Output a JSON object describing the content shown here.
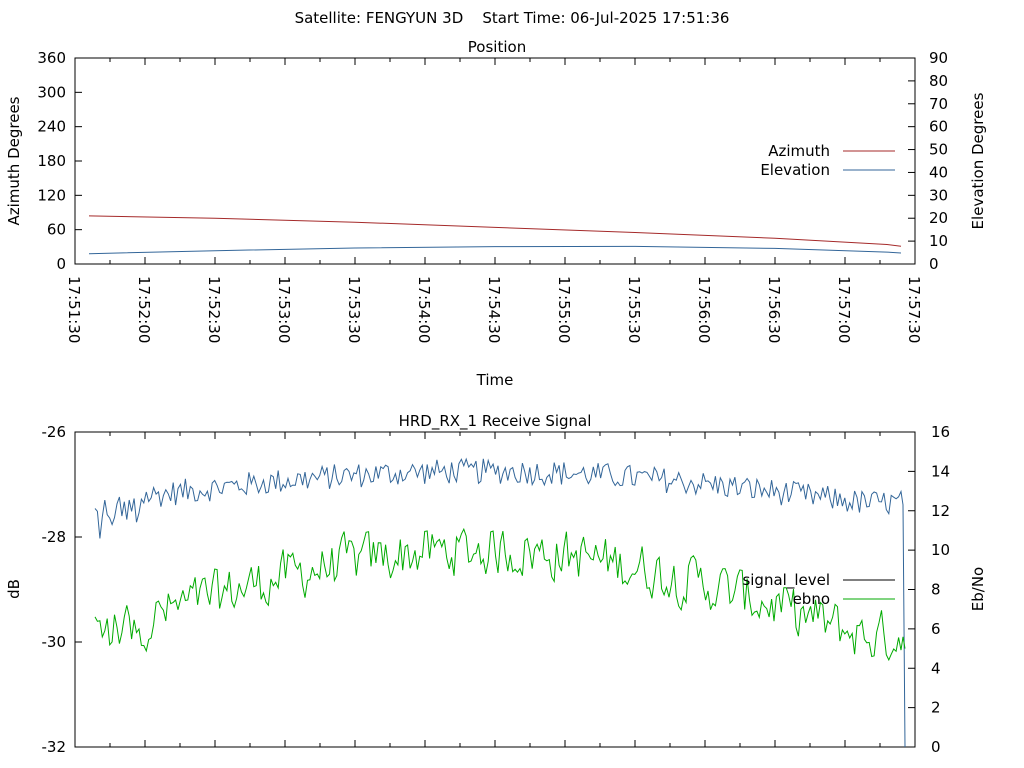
{
  "header": {
    "title": "Satellite: FENGYUN 3D    Start Time: 06-Jul-2025 17:51:36"
  },
  "chart_data": [
    {
      "type": "line",
      "title": "Position",
      "xlabel": "Time",
      "ylabel_left": "Azimuth Degrees",
      "ylabel_right": "Elevation Degrees",
      "ylim_left": [
        0,
        360
      ],
      "ylim_right": [
        0,
        90
      ],
      "yticks_left": [
        "0",
        "60",
        "120",
        "180",
        "240",
        "300",
        "360"
      ],
      "yticks_right": [
        "0",
        "10",
        "20",
        "30",
        "40",
        "50",
        "60",
        "70",
        "80",
        "90"
      ],
      "xticks": [
        "17:51:30",
        "17:52:00",
        "17:52:30",
        "17:53:00",
        "17:53:30",
        "17:54:00",
        "17:54:30",
        "17:55:00",
        "17:55:30",
        "17:56:00",
        "17:56:30",
        "17:57:00",
        "17:57:30"
      ],
      "xrange_seconds": [
        0,
        360
      ],
      "grid": false,
      "legend_position": "right",
      "series": [
        {
          "name": "Azimuth",
          "axis": "left",
          "color": "#a52a2a",
          "x_seconds": [
            6,
            60,
            120,
            180,
            240,
            300,
            348,
            354
          ],
          "values": [
            84,
            80,
            73,
            64,
            55,
            45,
            34,
            31
          ]
        },
        {
          "name": "Elevation",
          "axis": "right",
          "color": "#336699",
          "x_seconds": [
            6,
            60,
            120,
            180,
            240,
            300,
            348,
            354
          ],
          "values": [
            4.5,
            5.8,
            7.0,
            7.6,
            7.7,
            6.8,
            5.2,
            4.8
          ]
        }
      ]
    },
    {
      "type": "line",
      "title": "HRD_RX_1 Receive Signal",
      "ylabel_left": "dB",
      "ylabel_right": "Eb/No",
      "ylim_left": [
        -32,
        -26
      ],
      "ylim_right": [
        0,
        16
      ],
      "yticks_left": [
        "-26",
        "-28",
        "-30",
        "-32"
      ],
      "yticks_right": [
        "0",
        "2",
        "4",
        "6",
        "8",
        "10",
        "12",
        "14",
        "16"
      ],
      "legend_position": "right",
      "series": [
        {
          "name": "signal_level",
          "axis": "left",
          "color": "#000000"
        },
        {
          "name": "ebno",
          "axis": "right",
          "color": "#00aa00",
          "approx_mean": 8.4
        },
        {
          "name": "",
          "axis": "right",
          "color": "#336699",
          "approx_mean": 13.7
        }
      ]
    }
  ]
}
